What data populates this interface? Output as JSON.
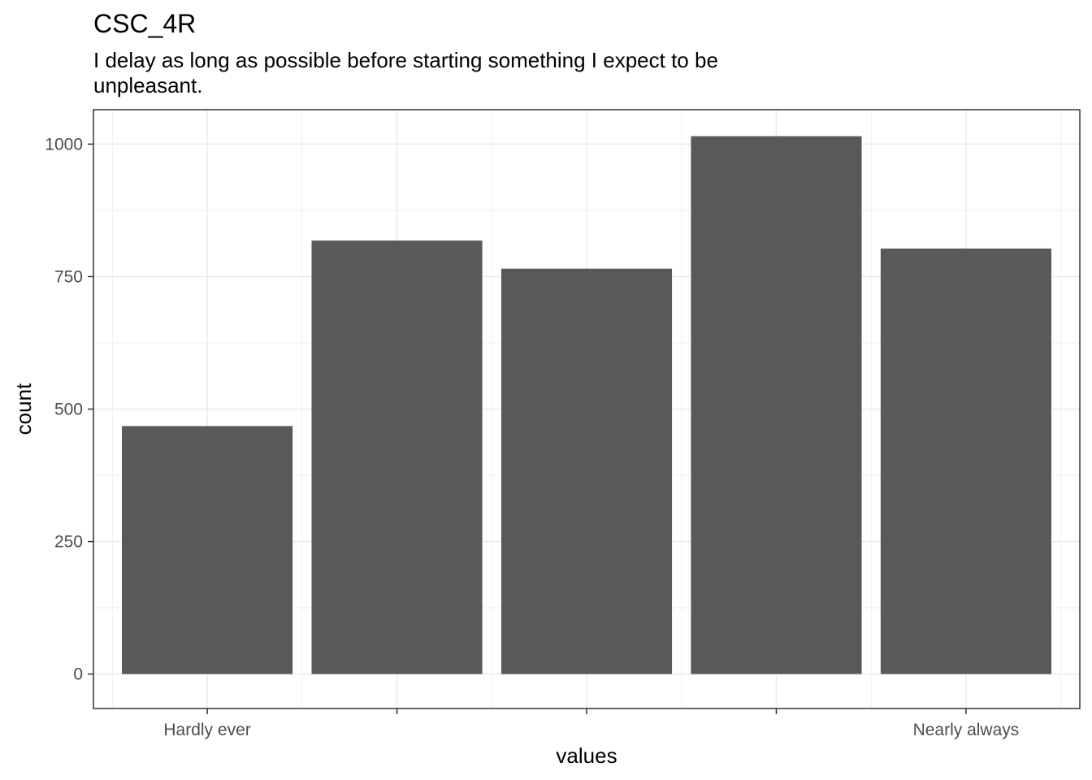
{
  "chart_data": {
    "type": "bar",
    "title": "CSC_4R",
    "subtitle": "I delay as long as possible before starting something I expect to be unpleasant.",
    "xlabel": "values",
    "ylabel": "count",
    "categories": [
      "Hardly ever",
      "",
      "",
      "",
      "Nearly always"
    ],
    "values": [
      468,
      818,
      765,
      1015,
      803
    ],
    "ylim": [
      -65,
      1065
    ],
    "yticks": [
      0,
      250,
      500,
      750,
      1000
    ],
    "ytick_labels": [
      "0",
      "250",
      "500",
      "750",
      "1000"
    ],
    "grid": true,
    "bar_color": "#595959",
    "grid_color": "#ebebeb",
    "panel_border_color": "#333333"
  }
}
